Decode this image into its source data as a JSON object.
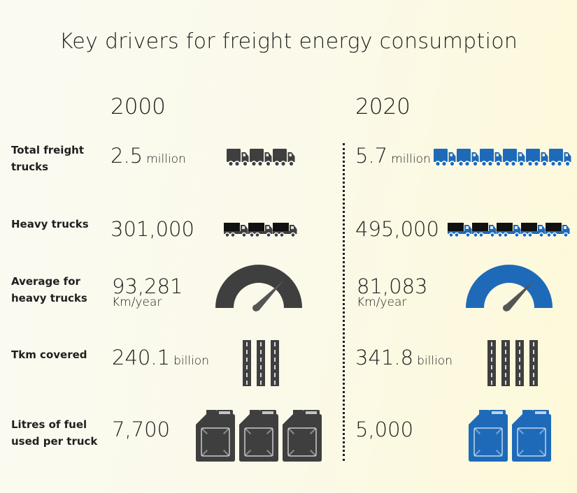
{
  "title": "Key drivers for freight energy consumption",
  "years": {
    "left": "2000",
    "right": "2020"
  },
  "colors": {
    "dark": "#3f3f3f",
    "blue": "#1e6ab8",
    "accent_road": "#ffffff"
  },
  "rows": [
    {
      "label": "Total  freight trucks",
      "left": {
        "value": "2.5",
        "unit": "million",
        "icon": "box-truck-icon",
        "count": 3
      },
      "right": {
        "value": "5.7",
        "unit": "million",
        "icon": "box-truck-icon",
        "count": 6
      }
    },
    {
      "label": "Heavy trucks",
      "left": {
        "value": "301,000",
        "icon": "heavy-truck-icon",
        "count": 3
      },
      "right": {
        "value": "495,000",
        "icon": "heavy-truck-icon",
        "count": 5
      }
    },
    {
      "label": "Average for heavy trucks",
      "left": {
        "value": "93,281",
        "unit": "Km/year",
        "icon": "speedometer-icon"
      },
      "right": {
        "value": "81,083",
        "unit": "Km/year",
        "icon": "speedometer-icon"
      }
    },
    {
      "label": "Tkm covered",
      "left": {
        "value": "240.1",
        "unit": "billion",
        "icon": "road-lane-icon",
        "count": 3
      },
      "right": {
        "value": "341.8",
        "unit": "billion",
        "icon": "road-lane-icon",
        "count": 4
      }
    },
    {
      "label": "Litres of fuel used per truck",
      "left": {
        "value": "7,700",
        "icon": "jerrycan-icon",
        "count": 3
      },
      "right": {
        "value": "5,000",
        "icon": "jerrycan-icon",
        "count": 2
      }
    }
  ]
}
